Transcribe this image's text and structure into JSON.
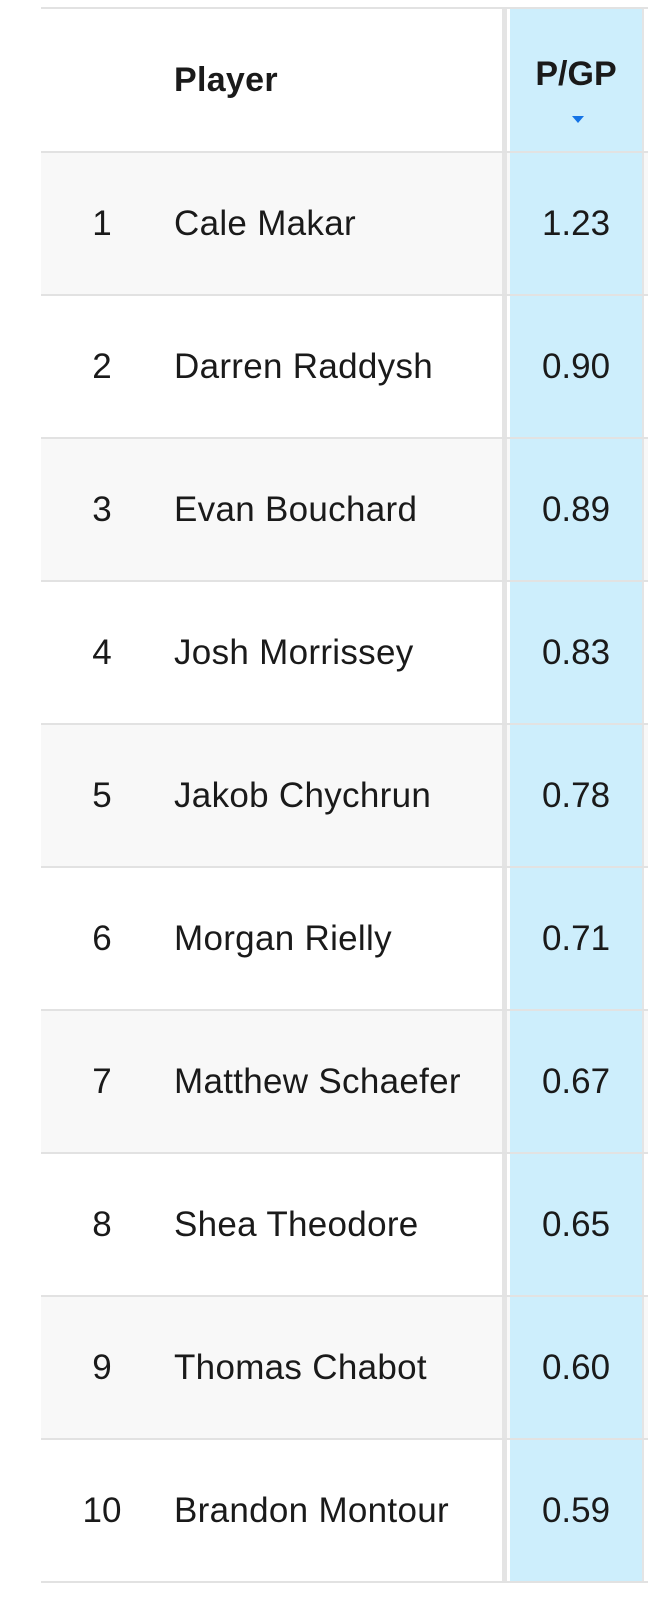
{
  "table": {
    "header": {
      "player": "Player",
      "pgp": "P/GP"
    },
    "rows": [
      [
        "1",
        "Cale Makar",
        "1.23"
      ],
      [
        "2",
        "Darren Raddysh",
        "0.90"
      ],
      [
        "3",
        "Evan Bouchard",
        "0.89"
      ],
      [
        "4",
        "Josh Morrissey",
        "0.83"
      ],
      [
        "5",
        "Jakob Chychrun",
        "0.78"
      ],
      [
        "6",
        "Morgan Rielly",
        "0.71"
      ],
      [
        "7",
        "Matthew Schaefer",
        "0.67"
      ],
      [
        "8",
        "Shea Theodore",
        "0.65"
      ],
      [
        "9",
        "Thomas Chabot",
        "0.60"
      ],
      [
        "10",
        "Brandon Montour",
        "0.59"
      ]
    ]
  }
}
